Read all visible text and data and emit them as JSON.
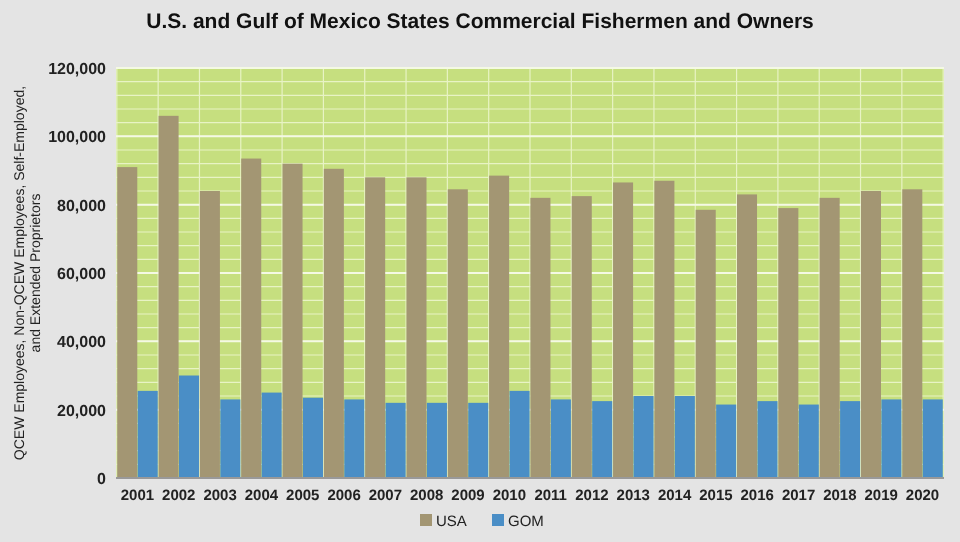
{
  "chart_data": {
    "type": "bar",
    "title": "U.S. and Gulf of Mexico States Commercial Fishermen and Owners",
    "ylabel": "QCEW Employees, Non-QCEW Employees, Self-Employed, and Extended Proprietors",
    "categories": [
      "2001",
      "2002",
      "2003",
      "2004",
      "2005",
      "2006",
      "2007",
      "2008",
      "2009",
      "2010",
      "2011",
      "2012",
      "2013",
      "2014",
      "2015",
      "2016",
      "2017",
      "2018",
      "2019",
      "2020"
    ],
    "series": [
      {
        "name": "USA",
        "color": "#a39673",
        "values": [
          91000,
          106000,
          84000,
          93500,
          92000,
          90500,
          88000,
          88000,
          84500,
          88500,
          82000,
          82500,
          86500,
          87000,
          78500,
          83000,
          79000,
          82000,
          84000,
          84500
        ]
      },
      {
        "name": "GOM",
        "color": "#4a8ec6",
        "values": [
          25500,
          30000,
          23000,
          25000,
          23500,
          23000,
          22000,
          22000,
          22000,
          25500,
          23000,
          22500,
          24000,
          24000,
          21500,
          22500,
          21500,
          22500,
          23000,
          23000
        ]
      }
    ],
    "ylim": [
      0,
      120000
    ],
    "yticks": [
      {
        "value": 0,
        "label": "0"
      },
      {
        "value": 20000,
        "label": "20,000"
      },
      {
        "value": 40000,
        "label": "40,000"
      },
      {
        "value": 60000,
        "label": "60,000"
      },
      {
        "value": 80000,
        "label": "80,000"
      },
      {
        "value": 100000,
        "label": "100,000"
      },
      {
        "value": 120000,
        "label": "120,000"
      }
    ],
    "grid": true,
    "legend": "bottom"
  }
}
